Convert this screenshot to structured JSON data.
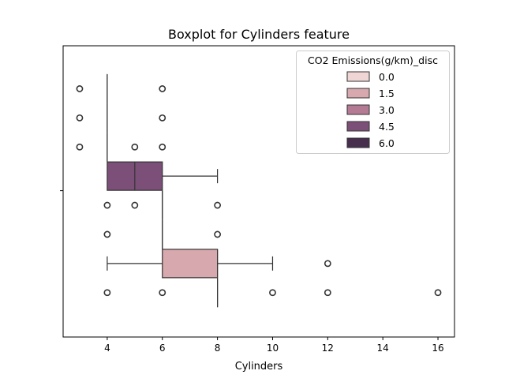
{
  "chart_data": {
    "type": "boxplot",
    "title": "Boxplot for Cylinders feature",
    "xlabel": "Cylinders",
    "ylabel": "",
    "xlim": [
      2.4,
      16.6
    ],
    "x_ticks": [
      4,
      6,
      8,
      10,
      12,
      14,
      16
    ],
    "y_tick_labels": [
      ""
    ],
    "grid": false,
    "legend": {
      "title": "CO2 Emissions(g/km)_disc",
      "placement": "top-right",
      "entries": [
        {
          "label": "0.0",
          "color": "#efd6d5"
        },
        {
          "label": "1.5",
          "color": "#d7a8ad"
        },
        {
          "label": "3.0",
          "color": "#b57b95"
        },
        {
          "label": "4.5",
          "color": "#7c4f78"
        },
        {
          "label": "6.0",
          "color": "#472e4f"
        }
      ]
    },
    "series": [
      {
        "name": "0.0",
        "color": "#efd6d5",
        "q1": 4,
        "median": 4,
        "q3": 4,
        "whisker_low": 4,
        "whisker_high": 4,
        "outliers": [
          3,
          6
        ]
      },
      {
        "name": "1.5",
        "color": "#d7a8ad",
        "q1": 4,
        "median": 4,
        "q3": 4,
        "whisker_low": 4,
        "whisker_high": 4,
        "outliers": [
          3,
          6
        ]
      },
      {
        "name": "3.0",
        "color": "#b57b95",
        "q1": 4,
        "median": 4,
        "q3": 4,
        "whisker_low": 4,
        "whisker_high": 4,
        "outliers": [
          3,
          5,
          6
        ]
      },
      {
        "name": "4.5",
        "color": "#7c4f78",
        "q1": 4,
        "median": 5,
        "q3": 6,
        "whisker_low": 4,
        "whisker_high": 8,
        "outliers": []
      },
      {
        "name": "6.0",
        "color": "#472e4f",
        "q1": 6,
        "median": 6,
        "q3": 6,
        "whisker_low": 6,
        "whisker_high": 6,
        "outliers": [
          4,
          5,
          8
        ]
      },
      {
        "name": "0.0",
        "color": "#efd6d5",
        "q1": 6,
        "median": 6,
        "q3": 6,
        "whisker_low": 6,
        "whisker_high": 6,
        "outliers": [
          4,
          8
        ]
      },
      {
        "name": "1.5",
        "color": "#d7a8ad",
        "q1": 6,
        "median": 8,
        "q3": 8,
        "whisker_low": 4,
        "whisker_high": 10,
        "outliers": [
          12
        ]
      },
      {
        "name": "3.0",
        "color": "#b57b95",
        "q1": 8,
        "median": 8,
        "q3": 8,
        "whisker_low": 8,
        "whisker_high": 8,
        "outliers": [
          4,
          6,
          10,
          12,
          16
        ]
      }
    ]
  }
}
